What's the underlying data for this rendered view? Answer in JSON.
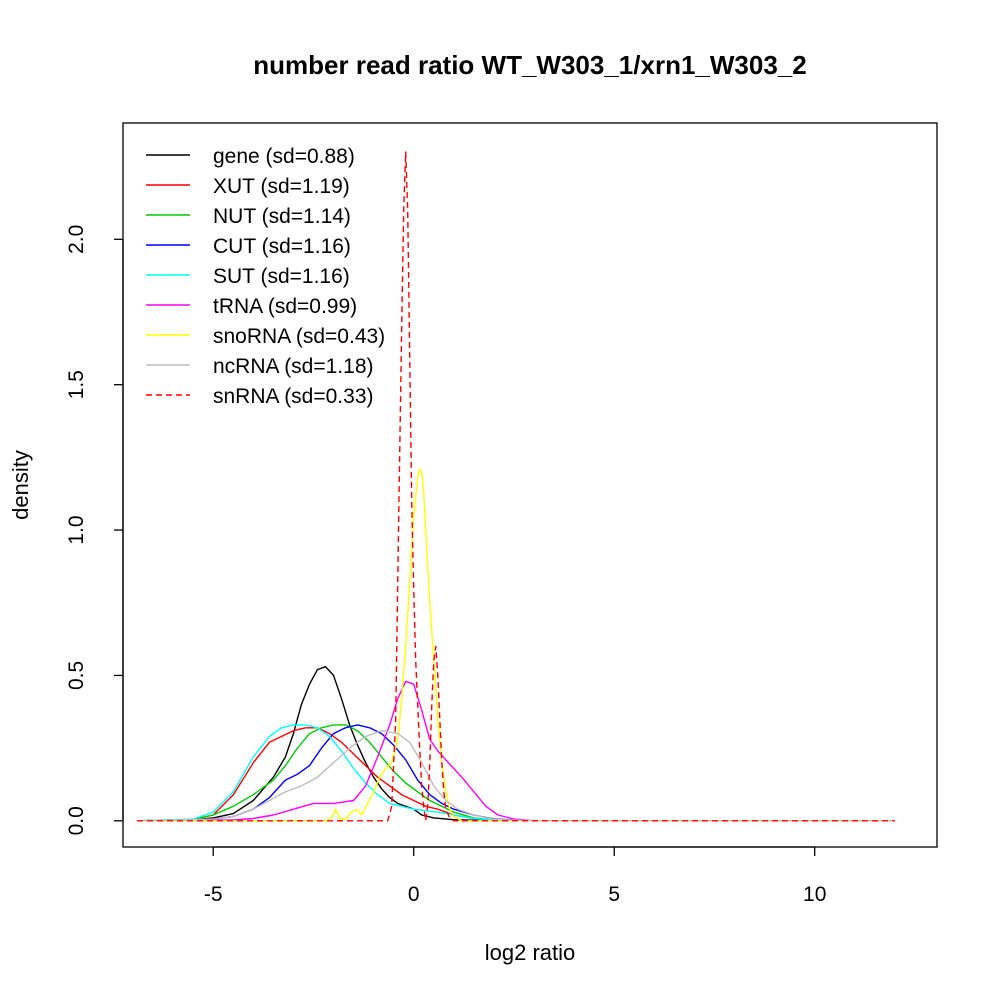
{
  "chart_data": {
    "type": "line",
    "title": "number read ratio WT_W303_1/xrn1_W303_2",
    "xlabel": "log2 ratio",
    "ylabel": "density",
    "xlim": [
      -7.25,
      13.05
    ],
    "ylim": [
      -0.09,
      2.4
    ],
    "x_ticks": [
      -5,
      0,
      5,
      10
    ],
    "x_tick_labels": [
      "-5",
      "0",
      "5",
      "10"
    ],
    "y_ticks": [
      0,
      0.5,
      1,
      1.5,
      2
    ],
    "y_tick_labels": [
      "0.0",
      "0.5",
      "1.0",
      "1.5",
      "2.0"
    ],
    "grid": false,
    "legend_position": "top-left",
    "series": [
      {
        "name": "gene (sd=0.88)",
        "color": "#000000",
        "dash": "solid",
        "x": [
          -6.9,
          -5.5,
          -5.0,
          -4.5,
          -4.0,
          -3.5,
          -3.2,
          -3.0,
          -2.8,
          -2.6,
          -2.4,
          -2.2,
          -2.0,
          -1.8,
          -1.6,
          -1.4,
          -1.2,
          -1.0,
          -0.8,
          -0.6,
          -0.4,
          -0.2,
          0.0,
          0.2,
          0.5,
          1.0,
          1.5,
          2.5,
          12.0
        ],
        "y": [
          0.0,
          0.004,
          0.01,
          0.025,
          0.07,
          0.15,
          0.22,
          0.3,
          0.4,
          0.47,
          0.52,
          0.53,
          0.5,
          0.42,
          0.33,
          0.26,
          0.2,
          0.15,
          0.11,
          0.08,
          0.06,
          0.05,
          0.04,
          0.02,
          0.01,
          0.004,
          0.002,
          0.0,
          0.0
        ]
      },
      {
        "name": "XUT (sd=1.19)",
        "color": "#ff0000",
        "dash": "solid",
        "x": [
          -6.9,
          -5.5,
          -5.0,
          -4.5,
          -4.0,
          -3.6,
          -3.3,
          -3.0,
          -2.7,
          -2.4,
          -2.1,
          -1.8,
          -1.5,
          -1.2,
          -0.9,
          -0.6,
          -0.3,
          0.0,
          0.3,
          0.6,
          1.0,
          1.5,
          2.0,
          3.0,
          12.0
        ],
        "y": [
          0.0,
          0.005,
          0.02,
          0.09,
          0.2,
          0.27,
          0.29,
          0.31,
          0.32,
          0.32,
          0.3,
          0.27,
          0.23,
          0.19,
          0.15,
          0.12,
          0.09,
          0.07,
          0.05,
          0.04,
          0.02,
          0.008,
          0.003,
          0.0,
          0.0
        ]
      },
      {
        "name": "NUT (sd=1.14)",
        "color": "#00cd00",
        "dash": "solid",
        "x": [
          -6.9,
          -5.5,
          -5.0,
          -4.5,
          -4.0,
          -3.5,
          -3.2,
          -2.9,
          -2.6,
          -2.3,
          -2.0,
          -1.7,
          -1.4,
          -1.1,
          -0.8,
          -0.5,
          -0.2,
          0.1,
          0.4,
          0.7,
          1.0,
          1.5,
          2.0,
          3.0,
          12.0
        ],
        "y": [
          0.0,
          0.005,
          0.02,
          0.05,
          0.09,
          0.14,
          0.19,
          0.25,
          0.3,
          0.32,
          0.33,
          0.33,
          0.31,
          0.27,
          0.22,
          0.17,
          0.13,
          0.1,
          0.07,
          0.05,
          0.03,
          0.01,
          0.003,
          0.0,
          0.0
        ]
      },
      {
        "name": "CUT (sd=1.16)",
        "color": "#0000ff",
        "dash": "solid",
        "x": [
          -6.9,
          -5.0,
          -4.5,
          -4.0,
          -3.6,
          -3.2,
          -2.9,
          -2.6,
          -2.3,
          -2.0,
          -1.7,
          -1.4,
          -1.1,
          -0.8,
          -0.5,
          -0.2,
          0.1,
          0.4,
          0.7,
          1.0,
          1.5,
          2.0,
          3.0,
          12.0
        ],
        "y": [
          0.0,
          0.006,
          0.015,
          0.04,
          0.08,
          0.14,
          0.16,
          0.19,
          0.25,
          0.3,
          0.32,
          0.33,
          0.32,
          0.3,
          0.26,
          0.21,
          0.14,
          0.09,
          0.06,
          0.04,
          0.02,
          0.006,
          0.0,
          0.0
        ]
      },
      {
        "name": "SUT (sd=1.16)",
        "color": "#00ffff",
        "dash": "solid",
        "x": [
          -6.9,
          -5.5,
          -5.0,
          -4.5,
          -4.0,
          -3.6,
          -3.3,
          -3.0,
          -2.7,
          -2.4,
          -2.1,
          -1.8,
          -1.5,
          -1.2,
          -0.9,
          -0.6,
          -0.3,
          0.0,
          0.3,
          0.6,
          1.0,
          1.5,
          2.0,
          3.0,
          12.0
        ],
        "y": [
          0.0,
          0.006,
          0.03,
          0.1,
          0.22,
          0.29,
          0.32,
          0.33,
          0.33,
          0.32,
          0.29,
          0.24,
          0.18,
          0.13,
          0.09,
          0.06,
          0.05,
          0.04,
          0.035,
          0.03,
          0.02,
          0.008,
          0.003,
          0.0,
          0.0
        ]
      },
      {
        "name": "tRNA (sd=0.99)",
        "color": "#ff00ff",
        "dash": "solid",
        "x": [
          -6.9,
          -4.5,
          -4.0,
          -3.5,
          -3.0,
          -2.5,
          -2.0,
          -1.5,
          -1.2,
          -0.9,
          -0.6,
          -0.4,
          -0.2,
          0.0,
          0.2,
          0.4,
          0.6,
          0.8,
          1.0,
          1.2,
          1.5,
          1.8,
          2.1,
          2.5,
          3.0,
          12.0
        ],
        "y": [
          0.0,
          0.003,
          0.008,
          0.02,
          0.04,
          0.06,
          0.06,
          0.07,
          0.12,
          0.22,
          0.33,
          0.42,
          0.48,
          0.47,
          0.38,
          0.28,
          0.24,
          0.21,
          0.18,
          0.15,
          0.1,
          0.05,
          0.02,
          0.006,
          0.0,
          0.0
        ]
      },
      {
        "name": "snoRNA (sd=0.43)",
        "color": "#ffff00",
        "dash": "solid",
        "x": [
          -6.9,
          -2.2,
          -2.05,
          -1.95,
          -1.85,
          -1.7,
          -1.55,
          -1.42,
          -1.3,
          -1.15,
          -1.0,
          -0.85,
          -0.7,
          -0.55,
          -0.4,
          -0.3,
          -0.2,
          -0.1,
          0.0,
          0.1,
          0.15,
          0.2,
          0.25,
          0.3,
          0.4,
          0.5,
          0.6,
          0.7,
          0.8,
          0.9,
          1.0,
          1.2,
          12.0
        ],
        "y": [
          0.0,
          0.0,
          0.01,
          0.04,
          0.01,
          0.005,
          0.03,
          0.04,
          0.02,
          0.06,
          0.1,
          0.15,
          0.18,
          0.2,
          0.28,
          0.42,
          0.6,
          0.82,
          1.05,
          1.18,
          1.21,
          1.2,
          1.13,
          1.0,
          0.75,
          0.55,
          0.35,
          0.2,
          0.1,
          0.04,
          0.015,
          0.0,
          0.0
        ]
      },
      {
        "name": "ncRNA (sd=1.18)",
        "color": "#bebebe",
        "dash": "solid",
        "x": [
          -6.9,
          -5.0,
          -4.5,
          -4.0,
          -3.6,
          -3.2,
          -2.8,
          -2.4,
          -2.0,
          -1.6,
          -1.2,
          -0.8,
          -0.4,
          -0.1,
          0.2,
          0.5,
          0.8,
          1.1,
          1.5,
          2.0,
          3.0,
          12.0
        ],
        "y": [
          0.0,
          0.006,
          0.015,
          0.04,
          0.07,
          0.1,
          0.12,
          0.15,
          0.2,
          0.25,
          0.29,
          0.31,
          0.3,
          0.27,
          0.2,
          0.12,
          0.07,
          0.04,
          0.02,
          0.005,
          0.0,
          0.0
        ]
      },
      {
        "name": "snRNA (sd=0.33)",
        "color": "#ff0000",
        "dash": "dashed",
        "x": [
          -6.9,
          -0.65,
          -0.55,
          -0.45,
          -0.38,
          -0.3,
          -0.25,
          -0.2,
          -0.15,
          -0.1,
          -0.05,
          0.0,
          0.05,
          0.1,
          0.15,
          0.2,
          0.25,
          0.3,
          0.35,
          0.4,
          0.45,
          0.5,
          0.55,
          0.6,
          0.65,
          0.7,
          0.75,
          0.8,
          0.9,
          1.0,
          12.0
        ],
        "y": [
          0.0,
          0.0,
          0.05,
          0.35,
          1.0,
          1.7,
          2.1,
          2.3,
          2.1,
          1.6,
          1.1,
          0.8,
          0.55,
          0.4,
          0.25,
          0.12,
          0.05,
          0.0,
          0.05,
          0.2,
          0.4,
          0.55,
          0.6,
          0.5,
          0.35,
          0.2,
          0.1,
          0.04,
          0.01,
          0.0,
          0.0
        ]
      }
    ]
  }
}
